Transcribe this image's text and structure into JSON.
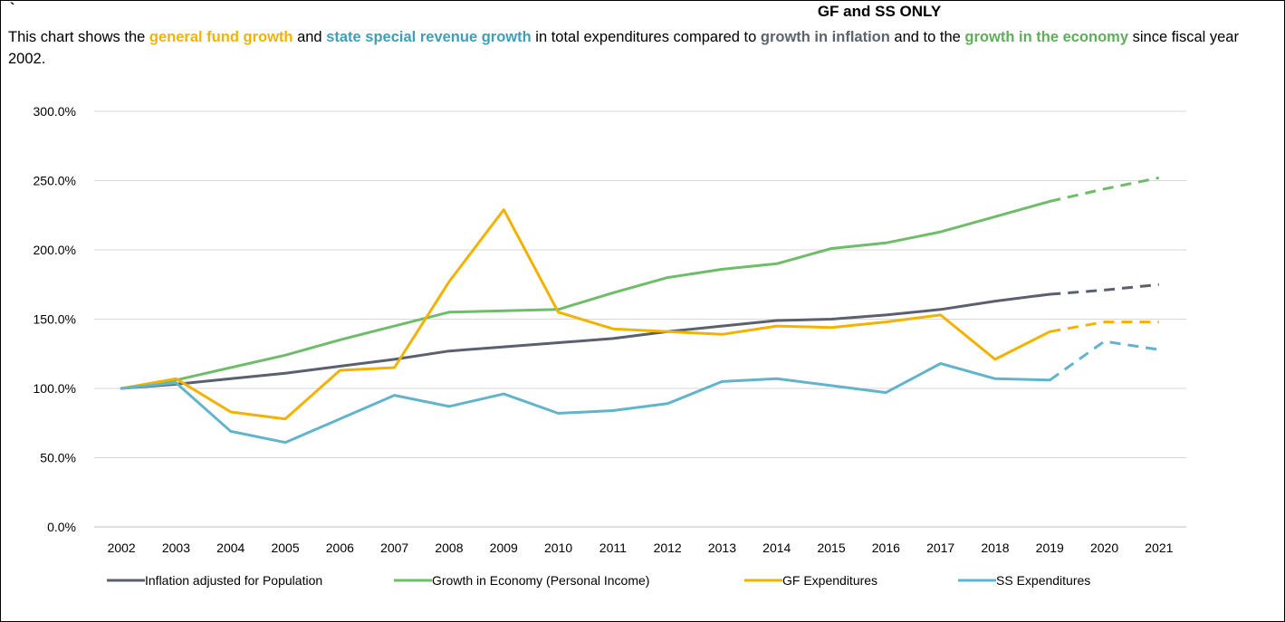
{
  "header": {
    "tick": "`",
    "title": "GF and SS ONLY"
  },
  "description": {
    "part1": "This chart shows the ",
    "gf_phrase": "general fund growth ",
    "part2": " and ",
    "ss_phrase": "state special revenue growth",
    "part3": " in total expenditures compared to ",
    "inflation_phrase": "growth in inflation",
    "part4": " and to the ",
    "economy_phrase": "growth in the economy",
    "part5": " since fiscal year 2002."
  },
  "chart_data": {
    "type": "line",
    "title": "GF and SS ONLY",
    "x": [
      "2002",
      "2003",
      "2004",
      "2005",
      "2006",
      "2007",
      "2008",
      "2009",
      "2010",
      "2011",
      "2012",
      "2013",
      "2014",
      "2015",
      "2016",
      "2017",
      "2018",
      "2019",
      "2020",
      "2021"
    ],
    "ylim": [
      0,
      300
    ],
    "yticks": [
      0,
      50,
      100,
      150,
      200,
      250,
      300
    ],
    "ytick_labels": [
      "0.0%",
      "50.0%",
      "100.0%",
      "150.0%",
      "200.0%",
      "250.0%",
      "300.0%"
    ],
    "grid": true,
    "legend": "bottom",
    "projected_from_year": "2019",
    "series": [
      {
        "name": "Inflation adjusted for Population",
        "color": "#5b6070",
        "values": [
          100,
          103,
          107,
          111,
          116,
          121,
          127,
          130,
          133,
          136,
          141,
          145,
          149,
          150,
          153,
          157,
          163,
          168,
          171,
          175
        ]
      },
      {
        "name": "Growth in Economy (Personal Income)",
        "color": "#6fbc6a",
        "values": [
          100,
          106,
          115,
          124,
          135,
          145,
          155,
          156,
          157,
          169,
          180,
          186,
          190,
          201,
          205,
          213,
          224,
          235,
          244,
          252
        ]
      },
      {
        "name": "GF Expenditures",
        "color": "#f2b200",
        "values": [
          100,
          107,
          83,
          78,
          113,
          115,
          177,
          229,
          155,
          143,
          141,
          139,
          145,
          144,
          148,
          153,
          121,
          141,
          148,
          148
        ]
      },
      {
        "name": "SS Expenditures",
        "color": "#62b4cc",
        "values": [
          100,
          104,
          69,
          61,
          78,
          95,
          87,
          96,
          82,
          84,
          89,
          105,
          107,
          102,
          97,
          118,
          107,
          106,
          134,
          128
        ]
      }
    ]
  }
}
